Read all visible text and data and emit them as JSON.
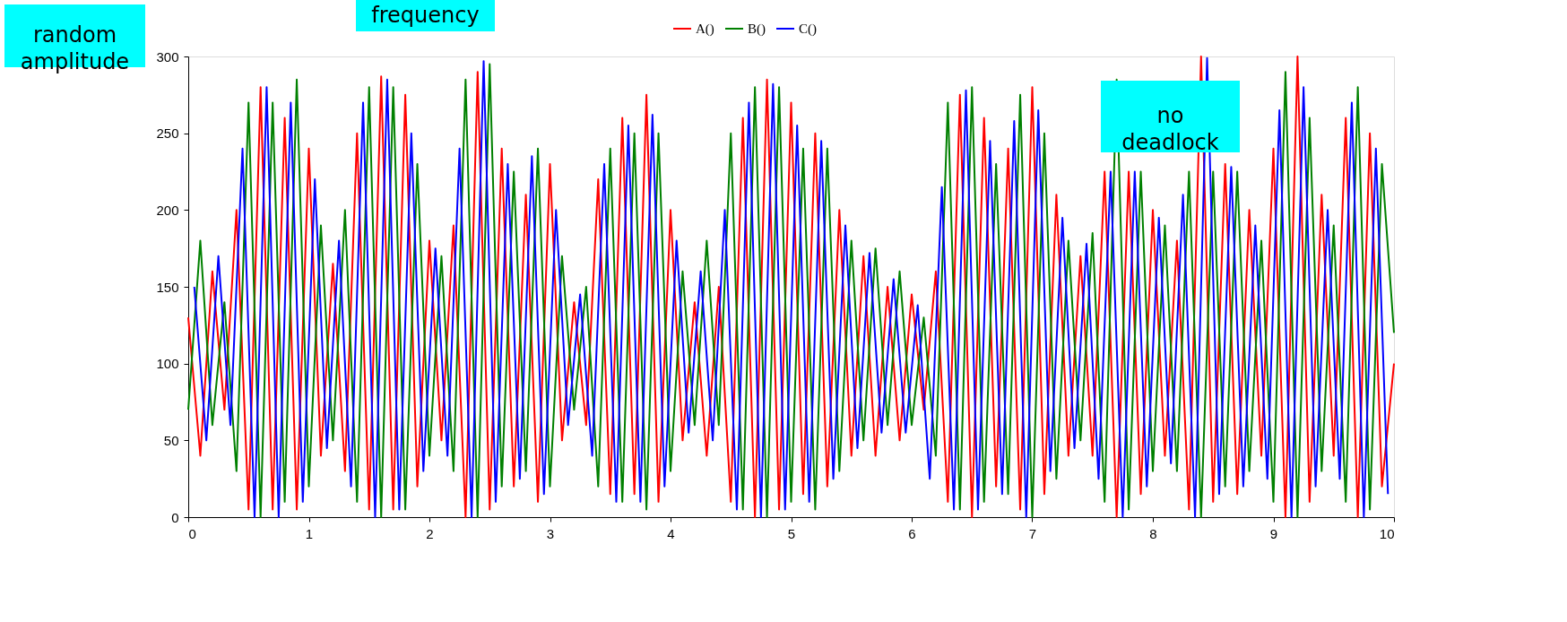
{
  "chart_data": {
    "type": "line",
    "annotations": [
      "random amplitude",
      "frequency",
      "no deadlock"
    ],
    "x": [
      0.0,
      0.1,
      0.2,
      0.3,
      0.4,
      0.5,
      0.6,
      0.7,
      0.8,
      0.9,
      1.0,
      1.1,
      1.2,
      1.3,
      1.4,
      1.5,
      1.6,
      1.7,
      1.8,
      1.9,
      2.0,
      2.1,
      2.2,
      2.3,
      2.4,
      2.5,
      2.6,
      2.7,
      2.8,
      2.9,
      3.0,
      3.1,
      3.2,
      3.3,
      3.4,
      3.5,
      3.6,
      3.7,
      3.8,
      3.9,
      4.0,
      4.1,
      4.2,
      4.3,
      4.4,
      4.5,
      4.6,
      4.7,
      4.8,
      4.9,
      5.0,
      5.1,
      5.2,
      5.3,
      5.4,
      5.5,
      5.6,
      5.7,
      5.8,
      5.9,
      6.0,
      6.1,
      6.2,
      6.3,
      6.4,
      6.5,
      6.6,
      6.7,
      6.8,
      6.9,
      7.0,
      7.1,
      7.2,
      7.3,
      7.4,
      7.5,
      7.6,
      7.7,
      7.8,
      7.9,
      8.0,
      8.1,
      8.2,
      8.3,
      8.4,
      8.5,
      8.6,
      8.7,
      8.8,
      8.9,
      9.0,
      9.1,
      9.2,
      9.3,
      9.4,
      9.5,
      9.6,
      9.7,
      9.8,
      9.9,
      10.0
    ],
    "series": [
      {
        "name": "A()",
        "color": "#ff0000",
        "values": [
          130,
          40,
          160,
          70,
          200,
          5,
          280,
          5,
          260,
          5,
          240,
          40,
          165,
          30,
          250,
          5,
          287,
          5,
          275,
          20,
          180,
          50,
          190,
          0,
          290,
          5,
          240,
          20,
          210,
          10,
          230,
          50,
          140,
          60,
          220,
          15,
          260,
          15,
          275,
          10,
          200,
          50,
          140,
          40,
          150,
          10,
          260,
          0,
          285,
          5,
          270,
          15,
          250,
          20,
          200,
          40,
          170,
          40,
          150,
          50,
          145,
          70,
          160,
          10,
          275,
          0,
          260,
          20,
          240,
          5,
          280,
          15,
          210,
          40,
          170,
          40,
          225,
          0,
          225,
          15,
          200,
          40,
          180,
          5,
          300,
          10,
          230,
          15,
          200,
          40,
          240,
          0,
          300,
          10,
          210,
          40,
          260,
          0,
          250,
          20,
          100
        ]
      },
      {
        "name": "B()",
        "color": "#008000",
        "values": [
          70,
          180,
          60,
          140,
          30,
          270,
          0,
          270,
          10,
          285,
          20,
          190,
          50,
          200,
          10,
          280,
          0,
          280,
          5,
          230,
          40,
          170,
          30,
          285,
          0,
          295,
          20,
          225,
          30,
          240,
          20,
          170,
          70,
          150,
          20,
          240,
          10,
          250,
          5,
          250,
          30,
          160,
          60,
          180,
          60,
          250,
          5,
          280,
          0,
          280,
          10,
          240,
          5,
          240,
          30,
          180,
          50,
          175,
          60,
          160,
          60,
          130,
          40,
          270,
          5,
          280,
          10,
          230,
          15,
          275,
          0,
          250,
          25,
          180,
          50,
          185,
          10,
          285,
          5,
          225,
          30,
          190,
          30,
          225,
          0,
          225,
          20,
          225,
          30,
          180,
          10,
          290,
          0,
          260,
          30,
          190,
          10,
          280,
          5,
          230,
          120
        ]
      },
      {
        "name": "C()",
        "color": "#0000ff",
        "x": [
          0.05,
          0.15,
          0.25,
          0.35,
          0.45,
          0.55,
          0.65,
          0.75,
          0.85,
          0.95,
          1.05,
          1.15,
          1.25,
          1.35,
          1.45,
          1.55,
          1.65,
          1.75,
          1.85,
          1.95,
          2.05,
          2.15,
          2.25,
          2.35,
          2.45,
          2.55,
          2.65,
          2.75,
          2.85,
          2.95,
          3.05,
          3.15,
          3.25,
          3.35,
          3.45,
          3.55,
          3.65,
          3.75,
          3.85,
          3.95,
          4.05,
          4.15,
          4.25,
          4.35,
          4.45,
          4.55,
          4.65,
          4.75,
          4.85,
          4.95,
          5.05,
          5.15,
          5.25,
          5.35,
          5.45,
          5.55,
          5.65,
          5.75,
          5.85,
          5.95,
          6.05,
          6.15,
          6.25,
          6.35,
          6.45,
          6.55,
          6.65,
          6.75,
          6.85,
          6.95,
          7.05,
          7.15,
          7.25,
          7.35,
          7.45,
          7.55,
          7.65,
          7.75,
          7.85,
          7.95,
          8.05,
          8.15,
          8.25,
          8.35,
          8.45,
          8.55,
          8.65,
          8.75,
          8.85,
          8.95,
          9.05,
          9.15,
          9.25,
          9.35,
          9.45,
          9.55,
          9.65,
          9.75,
          9.85,
          9.95
        ],
        "values": [
          150,
          50,
          170,
          60,
          240,
          0,
          280,
          0,
          270,
          10,
          220,
          45,
          180,
          20,
          270,
          0,
          285,
          5,
          250,
          30,
          175,
          40,
          240,
          0,
          297,
          10,
          230,
          25,
          235,
          15,
          200,
          60,
          145,
          40,
          230,
          10,
          255,
          10,
          262,
          20,
          180,
          55,
          160,
          50,
          200,
          5,
          270,
          0,
          282,
          5,
          255,
          10,
          245,
          25,
          190,
          45,
          172,
          55,
          155,
          55,
          138,
          25,
          215,
          5,
          278,
          5,
          245,
          15,
          258,
          0,
          265,
          30,
          195,
          45,
          178,
          25,
          225,
          0,
          225,
          20,
          195,
          35,
          210,
          0,
          299,
          15,
          228,
          20,
          190,
          25,
          265,
          0,
          280,
          20,
          200,
          25,
          270,
          0,
          240,
          15
        ]
      }
    ],
    "xlim": [
      0,
      10
    ],
    "xticks": [
      0,
      1,
      2,
      3,
      4,
      5,
      6,
      7,
      8,
      9,
      10
    ],
    "ylim": [
      0,
      300
    ],
    "yticks": [
      0,
      50,
      100,
      150,
      200,
      250,
      300
    ],
    "grid": false,
    "legend": "top",
    "marker": "none",
    "line_style": "solid"
  }
}
